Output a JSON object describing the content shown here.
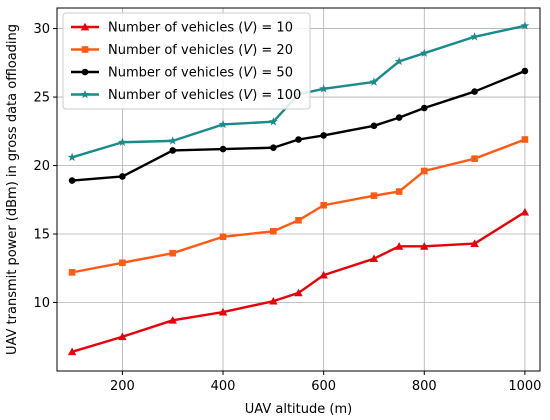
{
  "chart_data": {
    "type": "line",
    "xlabel": "UAV altitude (m)",
    "ylabel": "UAV transmit power (dBm) in gross data offloading",
    "xlim": [
      70,
      1030
    ],
    "ylim": [
      5,
      31.5
    ],
    "xticks": [
      200,
      400,
      600,
      800,
      1000
    ],
    "yticks": [
      10,
      15,
      20,
      25,
      30
    ],
    "grid": true,
    "legend_position": "top-left",
    "x": [
      100,
      200,
      300,
      400,
      500,
      550,
      600,
      700,
      750,
      800,
      900,
      1000
    ],
    "series": [
      {
        "name_prefix": "Number of vehicles (",
        "name_var": "V",
        "name_suffix": ") = 10",
        "color": "#e8000b",
        "marker": "triangle",
        "values": [
          6.4,
          7.5,
          8.7,
          9.3,
          10.1,
          10.7,
          12.0,
          13.2,
          14.1,
          14.1,
          14.3,
          16.6
        ]
      },
      {
        "name_prefix": "Number of vehicles (",
        "name_var": "V",
        "name_suffix": ") = 20",
        "color": "#ff5a14",
        "marker": "square",
        "values": [
          12.2,
          12.9,
          13.6,
          14.8,
          15.2,
          16.0,
          17.1,
          17.8,
          18.1,
          19.6,
          20.5,
          21.9
        ]
      },
      {
        "name_prefix": "Number of vehicles (",
        "name_var": "V",
        "name_suffix": ") = 50",
        "color": "#000000",
        "marker": "circle",
        "values": [
          18.9,
          19.2,
          21.1,
          21.2,
          21.3,
          21.9,
          22.2,
          22.9,
          23.5,
          24.2,
          25.4,
          26.9
        ]
      },
      {
        "name_prefix": "Number of vehicles (",
        "name_var": "V",
        "name_suffix": ") = 100",
        "color": "#1a8a8a",
        "marker": "star",
        "values": [
          20.6,
          21.7,
          21.8,
          23.0,
          23.2,
          25.2,
          25.6,
          26.1,
          27.6,
          28.2,
          29.4,
          30.2
        ]
      }
    ]
  }
}
